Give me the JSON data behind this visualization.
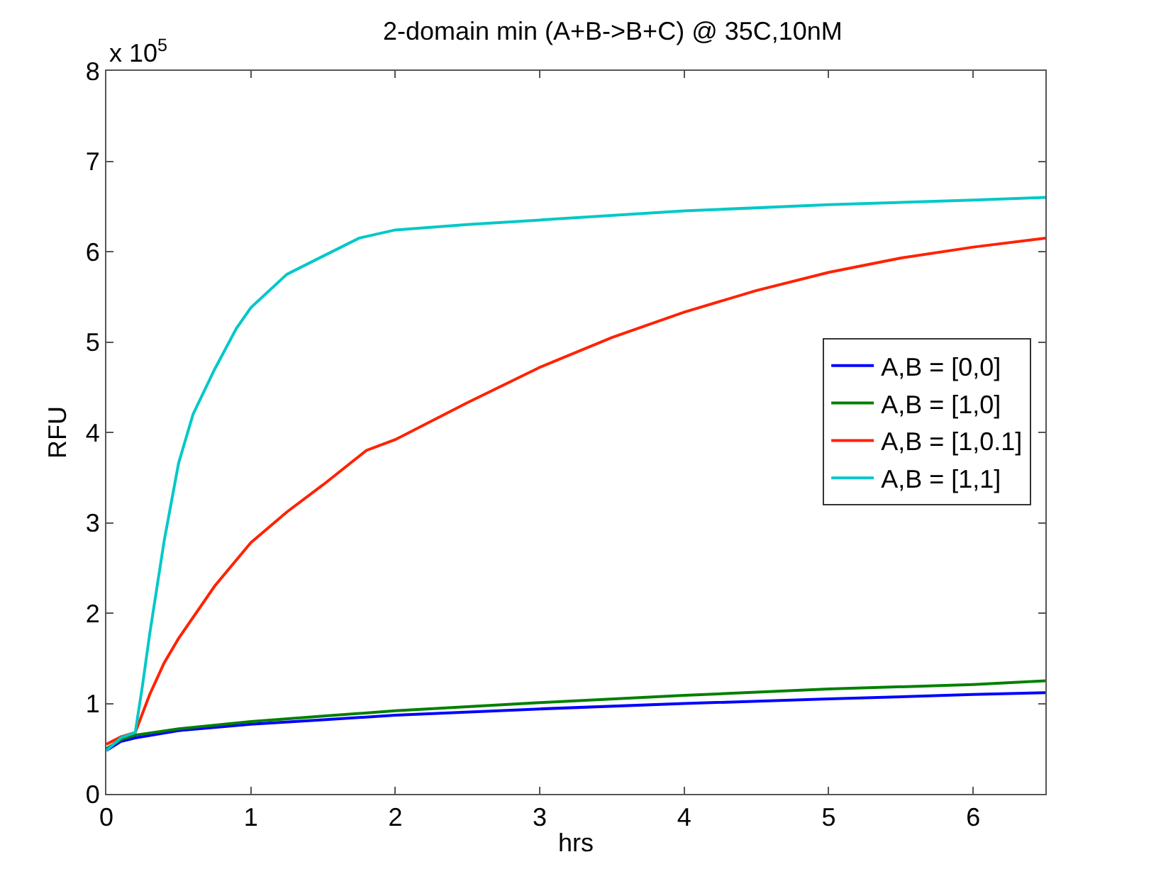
{
  "chart_data": {
    "type": "line",
    "title": "2-domain min (A+B->B+C) @ 35C,10nM",
    "xlabel": "hrs",
    "ylabel": "RFU",
    "annotations": [
      "x 10$^{5}$"
    ],
    "xlim": [
      0,
      6.5
    ],
    "xticks": [
      0,
      1,
      2,
      3,
      4,
      5,
      6
    ],
    "ylim": [
      0,
      8
    ],
    "yticks": [
      0,
      1,
      2,
      3,
      4,
      5,
      6,
      7,
      8
    ],
    "legend": "right",
    "marker": "none",
    "line_style": "solid",
    "series": [
      {
        "name": "A,B = [0,0]",
        "color": "#0000ff",
        "x": [
          0,
          0.1,
          0.2,
          0.5,
          1,
          1.5,
          2,
          3,
          4,
          5,
          6,
          6.5
        ],
        "values": [
          0.48,
          0.58,
          0.62,
          0.7,
          0.77,
          0.82,
          0.87,
          0.94,
          1.0,
          1.05,
          1.1,
          1.12
        ]
      },
      {
        "name": "A,B = [1,0]",
        "color": "#008000",
        "x": [
          0,
          0.1,
          0.2,
          0.5,
          1,
          1.5,
          2,
          3,
          4,
          5,
          6,
          6.5
        ],
        "values": [
          0.5,
          0.6,
          0.65,
          0.72,
          0.8,
          0.86,
          0.92,
          1.01,
          1.09,
          1.16,
          1.21,
          1.25
        ]
      },
      {
        "name": "A,B = [1,0.1]",
        "color": "#ff2200",
        "x": [
          0,
          0.1,
          0.2,
          0.3,
          0.4,
          0.5,
          0.75,
          1,
          1.25,
          1.5,
          1.8,
          2,
          2.5,
          3,
          3.5,
          4,
          4.5,
          5,
          5.5,
          6,
          6.5
        ],
        "values": [
          0.55,
          0.63,
          0.68,
          1.1,
          1.45,
          1.72,
          2.3,
          2.78,
          3.12,
          3.42,
          3.8,
          3.92,
          4.33,
          4.72,
          5.05,
          5.33,
          5.57,
          5.77,
          5.93,
          6.05,
          6.15
        ]
      },
      {
        "name": "A,B = [1,1]",
        "color": "#00c8c8",
        "x": [
          0,
          0.1,
          0.2,
          0.25,
          0.3,
          0.4,
          0.5,
          0.6,
          0.75,
          0.9,
          1,
          1.25,
          1.5,
          1.75,
          2,
          2.5,
          3,
          4,
          5,
          6,
          6.5
        ],
        "values": [
          0.48,
          0.62,
          0.68,
          1.2,
          1.77,
          2.8,
          3.66,
          4.2,
          4.7,
          5.15,
          5.38,
          5.75,
          5.95,
          6.15,
          6.24,
          6.3,
          6.35,
          6.45,
          6.52,
          6.57,
          6.6
        ]
      }
    ]
  }
}
